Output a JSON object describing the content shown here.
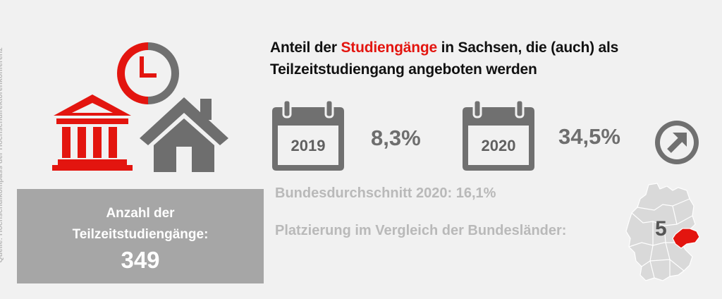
{
  "source_note": "Quelle: Hochschulkompass der Hochschulrektorenkonferenz",
  "title": {
    "part1": "Anteil der ",
    "highlight": "Studiengänge",
    "part2": " in Sachsen, die (auch) als",
    "line2": "Teilzeitstudiengang angeboten werden"
  },
  "years": [
    {
      "year": "2019",
      "value": "8,3%"
    },
    {
      "year": "2020",
      "value": "34,5%"
    }
  ],
  "trend_icon": "arrow-up-right-icon",
  "federal_average": "Bundesdurchschnitt 2020: 16,1%",
  "ranking_label": "Platzierung im Vergleich der Bundesländer:",
  "ranking_value": "5",
  "count_box": {
    "label_line1": "Anzahl der",
    "label_line2": "Teilzeitstudiengänge:",
    "value": "349"
  },
  "colors": {
    "accent_red": "#e3150f",
    "dark_gray": "#6e6e6e",
    "light_gray": "#b9b9b9",
    "box_gray": "#a6a6a6",
    "background": "#f1f1f1"
  }
}
